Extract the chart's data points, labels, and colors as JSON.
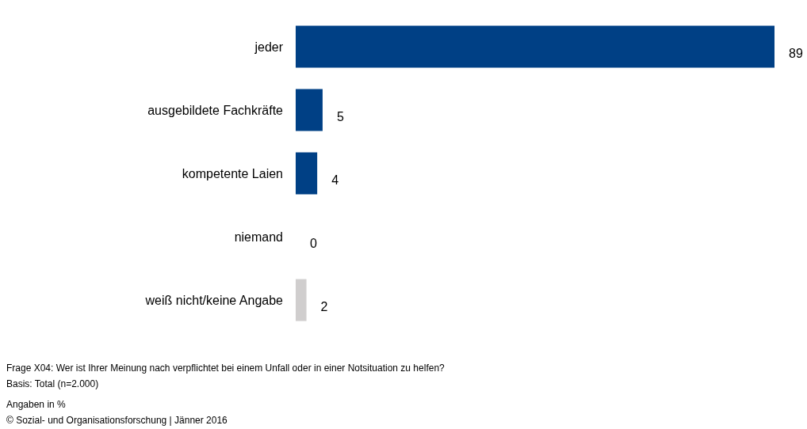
{
  "chart_data": {
    "type": "bar",
    "orientation": "horizontal",
    "categories": [
      "jeder",
      "ausgebildete Fachkräfte",
      "kompetente Laien",
      "niemand",
      "weiß nicht/keine Angabe"
    ],
    "values": [
      89,
      5,
      4,
      0,
      2
    ],
    "colors": [
      "#004085",
      "#004085",
      "#004085",
      "#004085",
      "#d0cece"
    ],
    "data_labels": true,
    "grid": false,
    "legend": false,
    "annotations": [
      "Frage X04: Wer ist Ihrer Meinung nach verpflichtet bei einem Unfall oder in einer Notsituation zu helfen?",
      "Basis: Total (n=2.000)",
      "Angaben in %",
      "© Sozial- und Organisationsforschung | Jänner 2016"
    ]
  }
}
